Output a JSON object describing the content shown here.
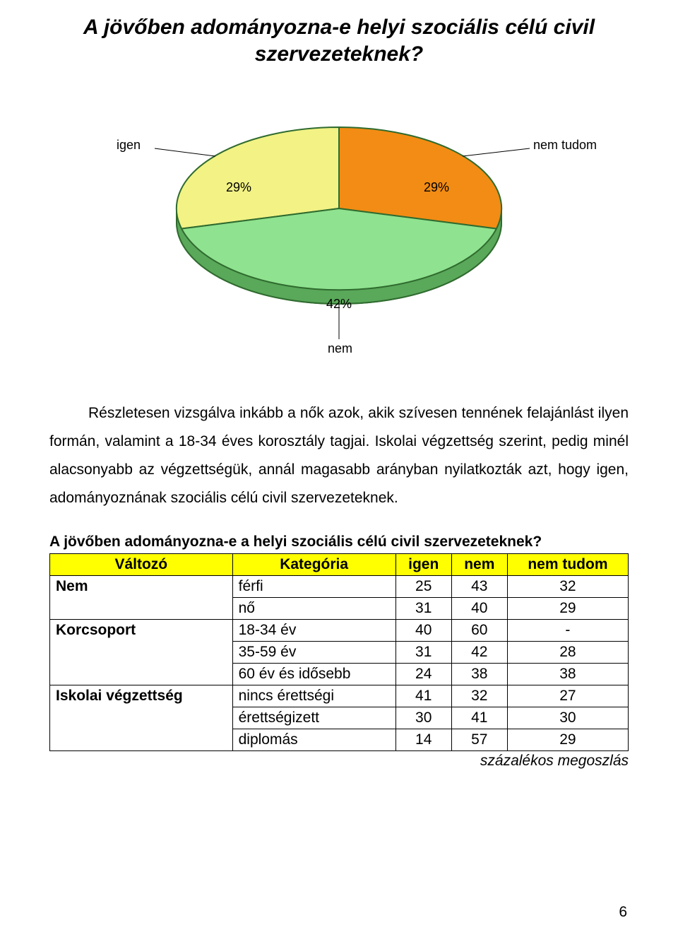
{
  "chart": {
    "title_line1": "A jövőben adományozna-e helyi szociális célú civil",
    "title_line2": "szervezeteknek?",
    "labels": {
      "igen": "igen",
      "nem_tudom": "nem tudom",
      "nem": "nem"
    },
    "percent_labels": {
      "igen": "29%",
      "nem_tudom": "29%",
      "nem": "42%"
    },
    "slices": [
      {
        "name": "igen",
        "value": 29,
        "color": "#f2f285"
      },
      {
        "name": "nem_tudom",
        "value": 29,
        "color": "#f28c14"
      },
      {
        "name": "nem",
        "value": 42,
        "color": "#8fe28f"
      }
    ],
    "edge_color": "#2f6b2f",
    "depth_color": "#5aa85a",
    "leader_color": "#000000",
    "label_font_size": 18,
    "title_font_size": 30
  },
  "paragraph": "Részletesen vizsgálva inkább a nők azok, akik szívesen tennének felajánlást ilyen formán, valamint a 18-34 éves korosztály tagjai. Iskolai végzettség szerint, pedig minél alacsonyabb az végzettségük, annál magasabb arányban nyilatkozták azt, hogy igen, adományoznának szociális célú civil szervezeteknek.",
  "table": {
    "title": "A jövőben adományozna-e a helyi szociális célú civil szervezeteknek?",
    "header_bg": "#ffff00",
    "columns": [
      "Változó",
      "Kategória",
      "igen",
      "nem",
      "nem tudom"
    ],
    "groups": [
      {
        "variable": "Nem",
        "rows": [
          {
            "cat": "férfi",
            "vals": [
              "25",
              "43",
              "32"
            ]
          },
          {
            "cat": "nő",
            "vals": [
              "31",
              "40",
              "29"
            ]
          }
        ]
      },
      {
        "variable": "Korcsoport",
        "rows": [
          {
            "cat": "18-34 év",
            "vals": [
              "40",
              "60",
              "-"
            ]
          },
          {
            "cat": "35-59 év",
            "vals": [
              "31",
              "42",
              "28"
            ]
          },
          {
            "cat": "60 év és idősebb",
            "vals": [
              "24",
              "38",
              "38"
            ]
          }
        ]
      },
      {
        "variable": "Iskolai végzettség",
        "rows": [
          {
            "cat": "nincs érettségi",
            "vals": [
              "41",
              "32",
              "27"
            ]
          },
          {
            "cat": "érettségizett",
            "vals": [
              "30",
              "41",
              "30"
            ]
          },
          {
            "cat": "diplomás",
            "vals": [
              "14",
              "57",
              "29"
            ]
          }
        ]
      }
    ],
    "footer": "százalékos megoszlás"
  },
  "page_number": "6"
}
